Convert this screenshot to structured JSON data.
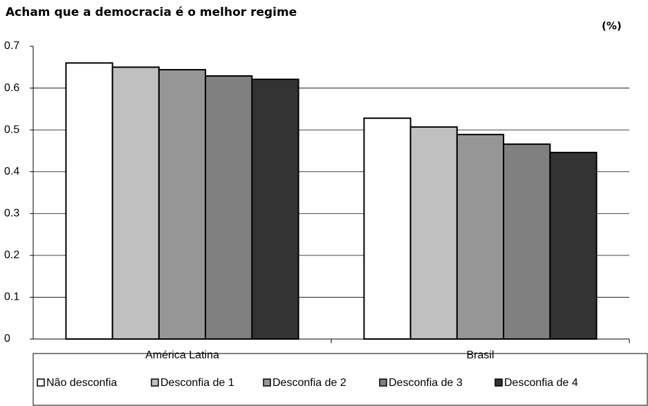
{
  "chart_data": {
    "type": "bar",
    "title": "Acham que a democracia é o melhor regime",
    "unit_label": "(%)",
    "categories": [
      "América Latina",
      "Brasil"
    ],
    "series": [
      {
        "name": "Não desconfia",
        "color": "#ffffff",
        "values": [
          0.66,
          0.528
        ]
      },
      {
        "name": "Desconfia de 1",
        "color": "#c0c0c0",
        "values": [
          0.65,
          0.507
        ]
      },
      {
        "name": "Desconfia de 2",
        "color": "#969696",
        "values": [
          0.644,
          0.489
        ]
      },
      {
        "name": "Desconfia de 3",
        "color": "#808080",
        "values": [
          0.629,
          0.466
        ]
      },
      {
        "name": "Desconfia de 4",
        "color": "#333333",
        "values": [
          0.621,
          0.446
        ]
      }
    ],
    "ylim": [
      0,
      0.7
    ],
    "yticks": [
      0,
      0.1,
      0.2,
      0.3,
      0.4,
      0.5,
      0.6,
      0.7
    ],
    "grid": true,
    "legend": "bottom"
  }
}
